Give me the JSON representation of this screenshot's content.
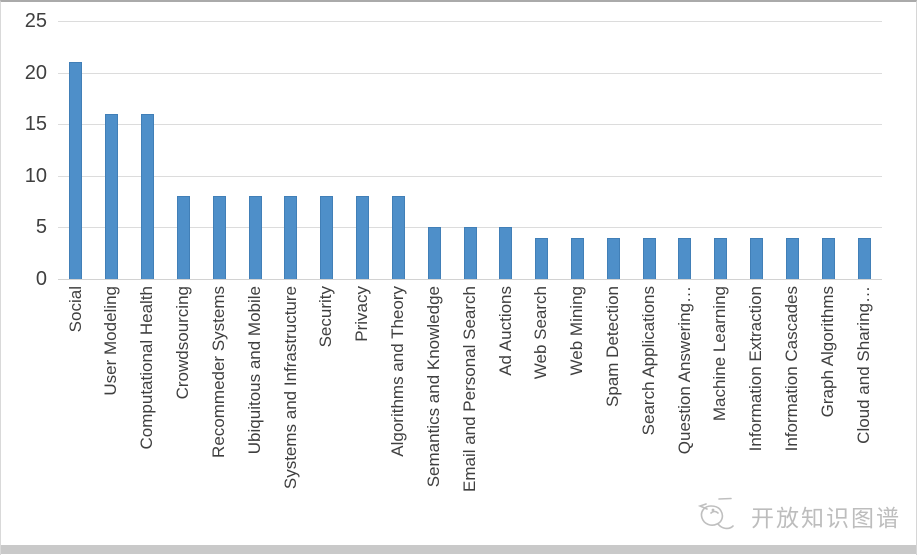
{
  "chart_data": {
    "type": "bar",
    "title": "",
    "xlabel": "",
    "ylabel": "",
    "categories": [
      "Social",
      "User Modeling",
      "Computational Health",
      "Crowdsourcing",
      "Recommeder Systems",
      "Ubiquitous and Mobile",
      "Systems and Infrastructure",
      "Security",
      "Privacy",
      "Algorithms and Theory",
      "Semantics and Knowledge",
      "Email and Personal Search",
      "Ad Auctions",
      "Web Search",
      "Web Mining",
      "Spam Detection",
      "Search Applications",
      "Question Answering…",
      "Machine Learning",
      "Information Extraction",
      "Information Cascades",
      "Graph Algorithms",
      "Cloud and Sharing…"
    ],
    "values": [
      21,
      16,
      16,
      8,
      8,
      8,
      8,
      8,
      8,
      8,
      5,
      5,
      5,
      4,
      4,
      4,
      4,
      4,
      4,
      4,
      4,
      4,
      4
    ],
    "ylim": [
      0,
      25
    ],
    "yticks": [
      0,
      5,
      10,
      15,
      20,
      25
    ],
    "grid": true,
    "legend": false,
    "x_label_rotation_deg": 90,
    "bar_color": "#4e8fc9",
    "gridline_color": "#dcdcdc",
    "axis_text_color": "#3f3f3f"
  },
  "watermark": {
    "text": "开放知识图谱",
    "logo_icon": "bird-doodle-icon",
    "color": "#bdbdbd"
  }
}
